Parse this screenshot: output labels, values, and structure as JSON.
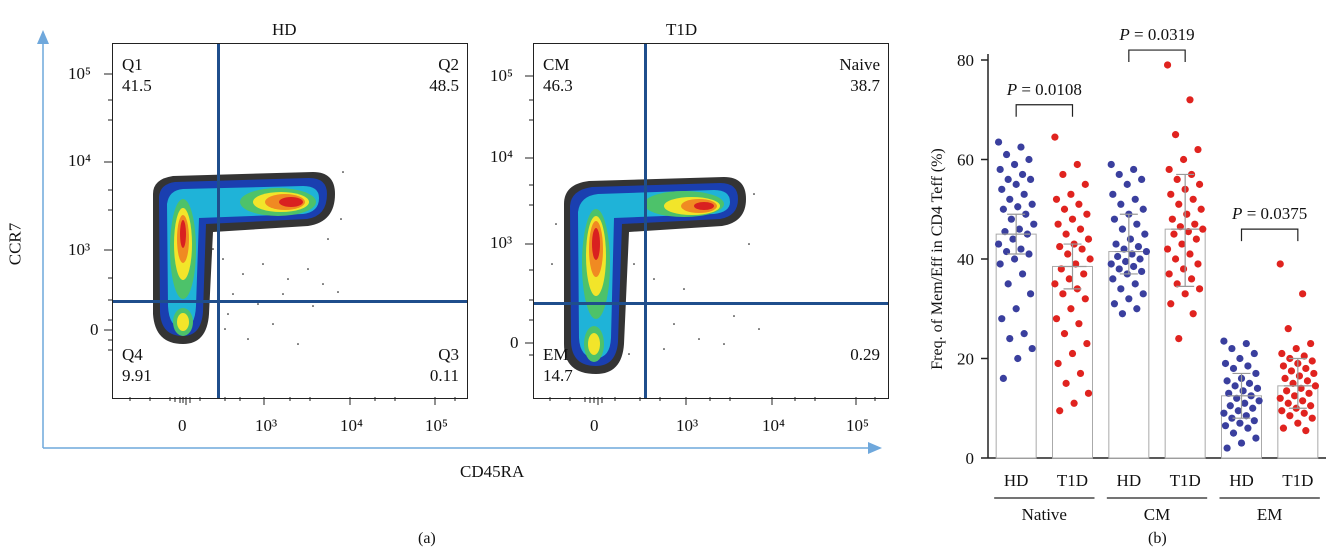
{
  "panel_a": {
    "caption": "(a)",
    "x_axis_label": "CD45RA",
    "y_axis_label": "CCR7",
    "x_ticks": [
      "0",
      "10³",
      "10⁴",
      "10⁵"
    ],
    "y_ticks": [
      "10⁵",
      "10⁴",
      "10³",
      "0"
    ],
    "plots": [
      {
        "title": "HD",
        "quadrants": {
          "tl": {
            "name": "Q1",
            "value": "41.5"
          },
          "tr": {
            "name": "Q2",
            "value": "48.5"
          },
          "bl": {
            "name": "Q4",
            "value": "9.91"
          },
          "br": {
            "name": "Q3",
            "value": "0.11"
          }
        }
      },
      {
        "title": "T1D",
        "quadrants": {
          "tl": {
            "name": "CM",
            "value": "46.3"
          },
          "tr": {
            "name": "Naive",
            "value": "38.7"
          },
          "bl": {
            "name": "EM",
            "value": "14.7"
          },
          "br": {
            "name": "",
            "value": "0.29"
          }
        }
      }
    ]
  },
  "panel_b": {
    "caption": "(b)"
  },
  "chart_data": {
    "type": "scatter",
    "ylabel": "Freq. of Mem/Eff in CD4 Teff (%)",
    "ylim": [
      0,
      80
    ],
    "yticks": [
      0,
      20,
      40,
      60,
      80
    ],
    "groups": [
      "Native",
      "CM",
      "EM"
    ],
    "categories": [
      "HD",
      "T1D",
      "HD",
      "T1D",
      "HD",
      "T1D"
    ],
    "colors": {
      "HD": "#3a3f9e",
      "T1D": "#e0231f"
    },
    "bars": [
      {
        "group": "Native",
        "label": "HD",
        "mean": 45,
        "sd_low": 41,
        "sd_high": 49
      },
      {
        "group": "Native",
        "label": "T1D",
        "mean": 38.5,
        "sd_low": 34,
        "sd_high": 43
      },
      {
        "group": "CM",
        "label": "HD",
        "mean": 41.5,
        "sd_low": 37,
        "sd_high": 49
      },
      {
        "group": "CM",
        "label": "T1D",
        "mean": 46,
        "sd_low": 34.5,
        "sd_high": 57
      },
      {
        "group": "EM",
        "label": "HD",
        "mean": 12.5,
        "sd_low": 8,
        "sd_high": 17
      },
      {
        "group": "EM",
        "label": "T1D",
        "mean": 14.5,
        "sd_low": 10,
        "sd_high": 20
      }
    ],
    "points": [
      [
        63.5,
        62.5,
        61,
        60,
        59,
        58,
        57,
        56,
        56,
        55,
        54,
        53,
        52,
        51,
        50.5,
        50,
        49,
        48,
        47,
        46,
        45.5,
        45,
        44,
        43,
        42,
        41.5,
        41,
        40,
        39,
        37,
        35,
        33,
        30,
        28,
        25,
        24,
        22,
        20,
        16
      ],
      [
        64.5,
        59,
        57,
        55,
        53,
        52,
        51,
        50,
        49,
        48,
        47,
        46,
        45,
        44,
        43,
        42.5,
        42,
        41,
        40,
        39,
        38,
        37,
        36,
        35,
        34,
        33,
        32,
        30,
        28,
        27,
        25,
        23,
        21,
        19,
        17,
        15,
        13,
        11,
        9.5
      ],
      [
        59,
        58,
        57,
        56,
        55,
        53,
        52,
        51,
        50,
        49,
        48,
        47,
        46,
        45,
        44,
        43,
        42.5,
        42,
        41.5,
        41,
        40.5,
        40,
        39.5,
        39,
        38.5,
        38,
        37.5,
        37,
        36,
        35,
        34,
        33,
        32,
        31,
        30,
        29
      ],
      [
        79,
        72,
        65,
        62,
        60,
        58,
        57,
        56,
        55,
        54,
        53,
        52,
        51,
        50,
        49,
        48,
        47,
        46.5,
        46,
        45.5,
        45,
        44,
        43,
        42,
        41,
        40,
        39,
        38,
        37,
        36,
        35,
        34,
        33,
        31,
        29,
        24
      ],
      [
        23.5,
        23,
        22,
        21,
        20,
        19,
        18.5,
        18,
        17,
        16,
        15.5,
        15,
        14.5,
        14,
        13.5,
        13,
        12.5,
        12,
        11.5,
        11,
        10.5,
        10,
        9.5,
        9,
        8.5,
        8,
        7.5,
        7,
        6.5,
        6,
        5,
        4,
        3,
        2
      ],
      [
        39,
        33,
        26,
        23,
        22,
        21,
        20.5,
        20,
        19.5,
        19,
        18.5,
        18,
        17.5,
        17,
        16.5,
        16,
        15.5,
        15,
        14.5,
        14,
        13.5,
        13,
        12.5,
        12,
        11.5,
        11,
        10.5,
        10,
        9.5,
        9,
        8.5,
        8,
        7,
        6,
        5.5
      ]
    ],
    "comparisons": [
      {
        "group": "Native",
        "label": "P = 0.0108"
      },
      {
        "group": "CM",
        "label": "P = 0.0319"
      },
      {
        "group": "EM",
        "label": "P = 0.0375"
      }
    ]
  }
}
